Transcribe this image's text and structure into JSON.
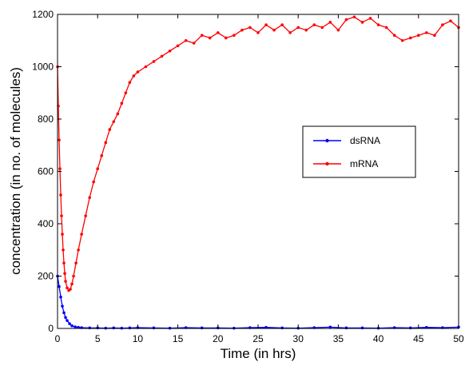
{
  "chart_data": {
    "type": "line",
    "xlabel": "Time (in hrs)",
    "ylabel": "concentration (in no. of molecules)",
    "xlim": [
      0,
      50
    ],
    "ylim": [
      0,
      1200
    ],
    "xticks": [
      0,
      5,
      10,
      15,
      20,
      25,
      30,
      35,
      40,
      45,
      50
    ],
    "yticks": [
      0,
      200,
      400,
      600,
      800,
      1000,
      1200
    ],
    "grid": false,
    "legend_position": "right",
    "series": [
      {
        "name": "dsRNA",
        "color": "#0000ff",
        "marker": "dot",
        "x": [
          0,
          0.2,
          0.4,
          0.6,
          0.8,
          1.0,
          1.2,
          1.5,
          1.8,
          2.2,
          2.6,
          3.0,
          4.0,
          5.0,
          6.0,
          7.0,
          8.0,
          9.0,
          10.0,
          12.0,
          14.0,
          16.0,
          18.0,
          20.0,
          22.0,
          24.0,
          26.0,
          28.0,
          30.0,
          32.0,
          34.0,
          36.0,
          38.0,
          40.0,
          42.0,
          44.0,
          46.0,
          48.0,
          50.0
        ],
        "y": [
          200,
          160,
          120,
          85,
          60,
          42,
          30,
          18,
          10,
          6,
          4,
          3,
          2,
          2,
          1,
          2,
          1,
          2,
          3,
          2,
          1,
          3,
          2,
          2,
          1,
          3,
          4,
          2,
          1,
          3,
          5,
          2,
          2,
          1,
          3,
          2,
          4,
          3,
          5
        ]
      },
      {
        "name": "mRNA",
        "color": "#ff0000",
        "marker": "dot",
        "x": [
          0,
          0.1,
          0.2,
          0.3,
          0.4,
          0.5,
          0.6,
          0.7,
          0.8,
          0.9,
          1.0,
          1.2,
          1.4,
          1.6,
          1.8,
          2.0,
          2.3,
          2.6,
          3.0,
          3.5,
          4.0,
          4.5,
          5.0,
          5.5,
          6.0,
          6.5,
          7.0,
          7.5,
          8.0,
          8.5,
          9.0,
          9.5,
          10.0,
          11.0,
          12.0,
          13.0,
          14.0,
          15.0,
          16.0,
          17.0,
          18.0,
          19.0,
          20.0,
          21.0,
          22.0,
          23.0,
          24.0,
          25.0,
          26.0,
          27.0,
          28.0,
          29.0,
          30.0,
          31.0,
          32.0,
          33.0,
          34.0,
          35.0,
          36.0,
          37.0,
          38.0,
          39.0,
          40.0,
          41.0,
          42.0,
          43.0,
          44.0,
          45.0,
          46.0,
          47.0,
          48.0,
          49.0,
          50.0
        ],
        "y": [
          1000,
          850,
          720,
          610,
          510,
          430,
          360,
          300,
          250,
          210,
          180,
          155,
          145,
          150,
          170,
          200,
          250,
          300,
          360,
          430,
          500,
          560,
          610,
          660,
          710,
          760,
          790,
          820,
          860,
          900,
          940,
          965,
          980,
          1000,
          1020,
          1040,
          1060,
          1080,
          1100,
          1090,
          1120,
          1110,
          1130,
          1110,
          1120,
          1140,
          1150,
          1130,
          1160,
          1140,
          1160,
          1130,
          1150,
          1140,
          1160,
          1150,
          1170,
          1140,
          1180,
          1190,
          1170,
          1185,
          1160,
          1150,
          1120,
          1100,
          1110,
          1120,
          1130,
          1120,
          1160,
          1175,
          1150
        ]
      }
    ]
  }
}
